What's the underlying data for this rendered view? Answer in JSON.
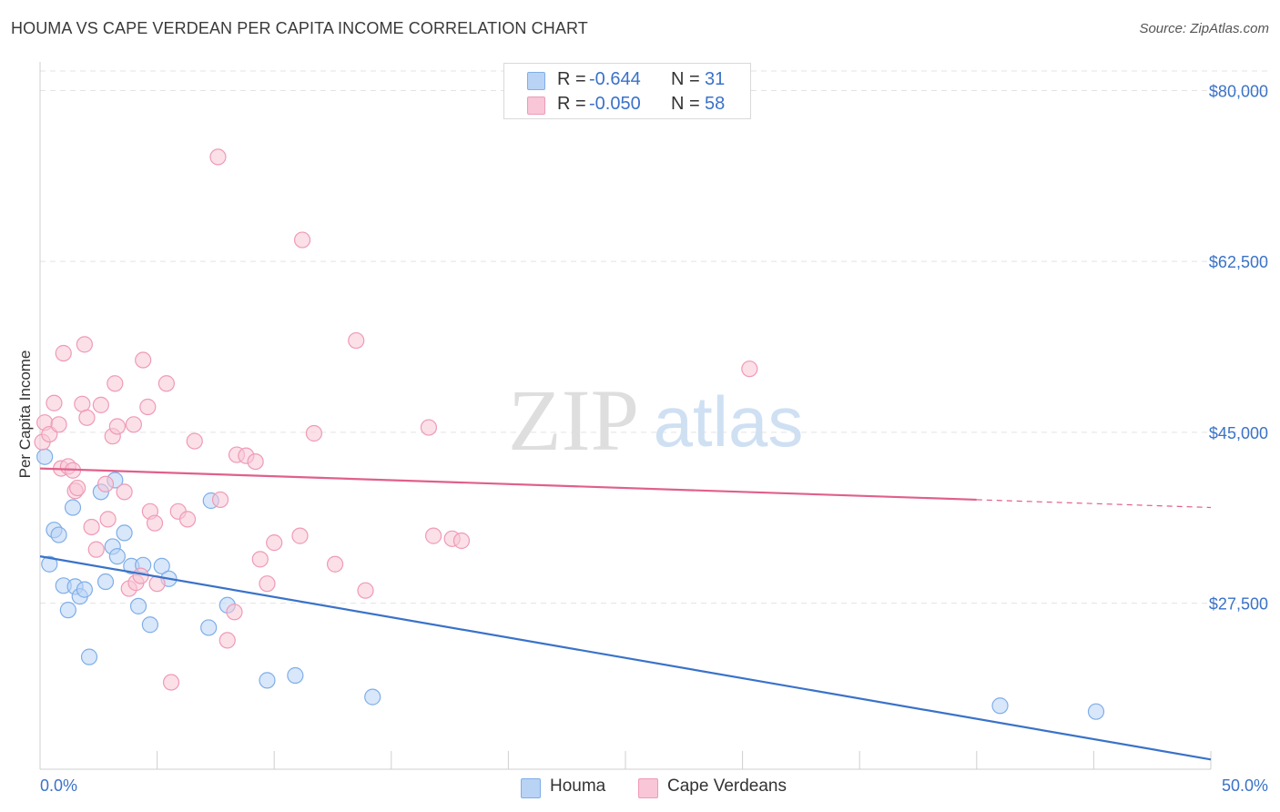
{
  "title": "HOUMA VS CAPE VERDEAN PER CAPITA INCOME CORRELATION CHART",
  "source": "Source: ZipAtlas.com",
  "watermark": {
    "zip": "ZIP",
    "atlas": "atlas"
  },
  "colors": {
    "blue": "#3a72c8",
    "blue_fill": "#b9d3f5",
    "blue_stroke": "#7eaee8",
    "pink": "#e0608a",
    "pink_fill": "#f8c6d6",
    "pink_stroke": "#ef9ab6",
    "grid": "#e3e3e3",
    "tick_label": "#3a72c8"
  },
  "legend": {
    "series": [
      {
        "r_label": "R =",
        "r_value": "-0.644",
        "n_label": "N =",
        "n_value": "31"
      },
      {
        "r_label": "R =",
        "r_value": "-0.050",
        "n_label": "N =",
        "n_value": "58"
      }
    ]
  },
  "bottom_legend": {
    "houma": "Houma",
    "cape": "Cape Verdeans"
  },
  "chart_data": {
    "type": "scatter",
    "title": "HOUMA VS CAPE VERDEAN PER CAPITA INCOME CORRELATION CHART",
    "xlabel": "",
    "ylabel": "Per Capita Income",
    "xlim": [
      0,
      50
    ],
    "ylim": [
      10500,
      82000
    ],
    "x_tick_labels": {
      "left": "0.0%",
      "right": "50.0%"
    },
    "y_ticks": [
      {
        "value": 80000,
        "label": "$80,000"
      },
      {
        "value": 62500,
        "label": "$62,500"
      },
      {
        "value": 45000,
        "label": "$45,000"
      },
      {
        "value": 27500,
        "label": "$27,500"
      }
    ],
    "grid": true,
    "series": [
      {
        "name": "Houma",
        "color": "#3a72c8",
        "points": [
          [
            0.2,
            42500
          ],
          [
            0.4,
            31500
          ],
          [
            0.6,
            35000
          ],
          [
            0.8,
            34500
          ],
          [
            1.0,
            29300
          ],
          [
            1.2,
            26800
          ],
          [
            1.4,
            37300
          ],
          [
            1.5,
            29200
          ],
          [
            1.7,
            28200
          ],
          [
            1.9,
            28900
          ],
          [
            2.1,
            22000
          ],
          [
            2.6,
            38900
          ],
          [
            2.8,
            29700
          ],
          [
            3.1,
            33300
          ],
          [
            3.2,
            40100
          ],
          [
            3.3,
            32300
          ],
          [
            3.6,
            34700
          ],
          [
            3.9,
            31300
          ],
          [
            4.2,
            27200
          ],
          [
            4.4,
            31400
          ],
          [
            4.7,
            25300
          ],
          [
            5.2,
            31300
          ],
          [
            5.5,
            30000
          ],
          [
            7.2,
            25000
          ],
          [
            7.3,
            38000
          ],
          [
            8.0,
            27300
          ],
          [
            9.7,
            19600
          ],
          [
            10.9,
            20100
          ],
          [
            14.2,
            17900
          ],
          [
            41.0,
            17000
          ],
          [
            45.1,
            16400
          ]
        ],
        "trend": {
          "x": [
            0,
            50
          ],
          "y": [
            32300,
            11500
          ]
        }
      },
      {
        "name": "Cape Verdeans",
        "color": "#e0608a",
        "points": [
          [
            0.1,
            44000
          ],
          [
            0.2,
            46000
          ],
          [
            0.4,
            44800
          ],
          [
            0.6,
            48000
          ],
          [
            0.8,
            45800
          ],
          [
            0.9,
            41300
          ],
          [
            1.0,
            53100
          ],
          [
            1.2,
            41500
          ],
          [
            1.4,
            41100
          ],
          [
            1.5,
            39000
          ],
          [
            1.6,
            39300
          ],
          [
            1.8,
            47900
          ],
          [
            1.9,
            54000
          ],
          [
            2.0,
            46500
          ],
          [
            2.2,
            35300
          ],
          [
            2.4,
            33000
          ],
          [
            2.6,
            47800
          ],
          [
            2.8,
            39700
          ],
          [
            2.9,
            36100
          ],
          [
            3.1,
            44600
          ],
          [
            3.2,
            50000
          ],
          [
            3.3,
            45600
          ],
          [
            3.6,
            38900
          ],
          [
            3.8,
            29000
          ],
          [
            4.0,
            45800
          ],
          [
            4.1,
            29600
          ],
          [
            4.3,
            30300
          ],
          [
            4.4,
            52400
          ],
          [
            4.6,
            47600
          ],
          [
            4.7,
            36900
          ],
          [
            4.9,
            35700
          ],
          [
            5.0,
            29500
          ],
          [
            5.4,
            50000
          ],
          [
            5.6,
            19400
          ],
          [
            5.9,
            36900
          ],
          [
            6.3,
            36100
          ],
          [
            6.6,
            44100
          ],
          [
            7.6,
            73200
          ],
          [
            7.7,
            38100
          ],
          [
            8.0,
            23700
          ],
          [
            8.3,
            26600
          ],
          [
            8.4,
            42700
          ],
          [
            8.8,
            42600
          ],
          [
            9.2,
            42000
          ],
          [
            9.4,
            32000
          ],
          [
            9.7,
            29500
          ],
          [
            10.0,
            33700
          ],
          [
            11.1,
            34400
          ],
          [
            11.2,
            64700
          ],
          [
            11.7,
            44900
          ],
          [
            12.6,
            31500
          ],
          [
            13.5,
            54400
          ],
          [
            13.9,
            28800
          ],
          [
            16.6,
            45500
          ],
          [
            16.8,
            34400
          ],
          [
            17.6,
            34100
          ],
          [
            18.0,
            33900
          ],
          [
            30.3,
            51500
          ]
        ],
        "trend": {
          "x": [
            0,
            40
          ],
          "y": [
            41300,
            38100
          ],
          "dashed_to": [
            50,
            37300
          ]
        }
      }
    ]
  }
}
